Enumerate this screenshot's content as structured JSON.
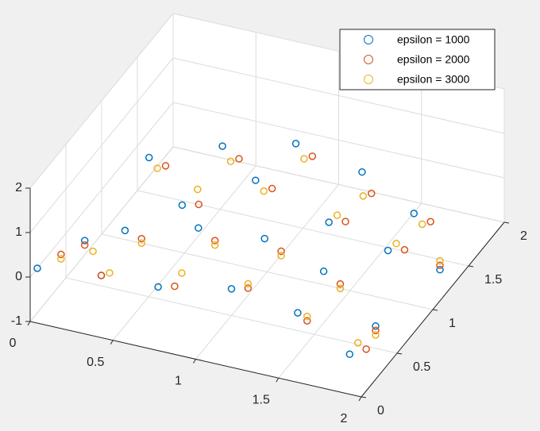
{
  "chart_data": {
    "type": "scatter3d",
    "xlim": [
      0,
      2
    ],
    "ylim": [
      0,
      2
    ],
    "zlim": [
      -1,
      2
    ],
    "xticks": [
      0,
      0.5,
      1,
      1.5,
      2
    ],
    "yticks": [
      0,
      0.5,
      1,
      1.5,
      2
    ],
    "zticks": [
      -1,
      0,
      1,
      2
    ],
    "grid": true,
    "legend": "top-right",
    "series": [
      {
        "name": "epsilon = 1000",
        "color": "#0072BD",
        "x": [
          0,
          0.2,
          0.3,
          0.4,
          0.6,
          0.8,
          1.0,
          1.2,
          1.4,
          1.6,
          1.8,
          2.0,
          0.2,
          0.4,
          0.6,
          0.8,
          1.0,
          1.2,
          1.4,
          1.6,
          1.8,
          2.0
        ],
        "y": [
          0.1,
          0.3,
          0.3,
          0.4,
          0.4,
          0.5,
          0.5,
          0.5,
          0.5,
          0.4,
          0.3,
          0.2,
          1.2,
          1.2,
          1.3,
          1.3,
          1.4,
          1.4,
          1.4,
          1.3,
          1.2,
          1.1
        ],
        "z": [
          0,
          0.4,
          -0.3,
          0.6,
          -0.5,
          0.8,
          -0.4,
          0.9,
          -0.6,
          0.7,
          -0.8,
          0.2,
          0.5,
          -0.4,
          0.9,
          0.3,
          1.1,
          -0.5,
          0.8,
          -0.6,
          0.6,
          -0.3
        ]
      },
      {
        "name": "epsilon = 2000",
        "color": "#D95319",
        "x": [
          0.1,
          0.2,
          0.3,
          0.5,
          0.7,
          0.9,
          1.1,
          1.3,
          1.5,
          1.7,
          1.9,
          2.0,
          0.3,
          0.5,
          0.7,
          0.9,
          1.1,
          1.3,
          1.5,
          1.7,
          1.9,
          2.0
        ],
        "y": [
          0.2,
          0.3,
          0.3,
          0.4,
          0.4,
          0.5,
          0.5,
          0.5,
          0.4,
          0.4,
          0.3,
          0.2,
          1.2,
          1.2,
          1.3,
          1.3,
          1.4,
          1.4,
          1.3,
          1.3,
          1.2,
          1.1
        ],
        "z": [
          0.2,
          0.3,
          -0.3,
          0.5,
          -0.4,
          0.6,
          -0.3,
          0.7,
          -0.5,
          0.5,
          -0.6,
          0.1,
          0.4,
          -0.3,
          0.7,
          0.2,
          0.9,
          -0.4,
          0.6,
          -0.5,
          0.5,
          -0.2
        ]
      },
      {
        "name": "epsilon = 3000",
        "color": "#EDB120",
        "x": [
          0.1,
          0.25,
          0.35,
          0.5,
          0.7,
          0.9,
          1.1,
          1.3,
          1.5,
          1.7,
          1.85,
          2.0,
          0.25,
          0.45,
          0.65,
          0.85,
          1.05,
          1.25,
          1.45,
          1.65,
          1.85,
          2.0
        ],
        "y": [
          0.2,
          0.3,
          0.3,
          0.4,
          0.5,
          0.5,
          0.5,
          0.5,
          0.4,
          0.4,
          0.3,
          0.2,
          1.2,
          1.3,
          1.3,
          1.3,
          1.4,
          1.4,
          1.3,
          1.3,
          1.2,
          1.1
        ],
        "z": [
          0.1,
          0.2,
          -0.2,
          0.4,
          -0.3,
          0.5,
          -0.2,
          0.6,
          -0.4,
          0.4,
          -0.5,
          0.0,
          0.3,
          -0.2,
          0.6,
          0.1,
          0.8,
          -0.3,
          0.5,
          -0.4,
          0.4,
          -0.1
        ]
      }
    ]
  }
}
